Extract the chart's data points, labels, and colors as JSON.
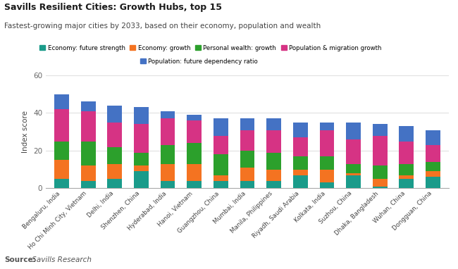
{
  "title": "Savills Resilient Cities: Growth Hubs, top 15",
  "subtitle": "Fastest-growing major cities by 2033, based on their economy, population and wealth",
  "source_bold": "Source:",
  "source_italic": " Savills Research",
  "ylabel": "Index score",
  "ylim": [
    0,
    60
  ],
  "yticks": [
    0,
    20,
    40,
    60
  ],
  "categories": [
    "Bengaluru, India",
    "Ho Chi Minh City, Vietnam",
    "Delhi, India",
    "Shenzhen, China",
    "Hyderabad, India",
    "Hanoi, Vietnam",
    "Guangzhou, China",
    "Mumbai, India",
    "Manila, Philippines",
    "Riyadh, Saudi Arabia",
    "Kolkata, India",
    "Suzhou, China",
    "Dhaka, Bangladesh",
    "Wuhan, China",
    "Dongguan, China"
  ],
  "series": {
    "Economy: future strength": {
      "color": "#1a9b8a",
      "values": [
        5,
        4,
        5,
        9,
        4,
        4,
        4,
        4,
        4,
        7,
        3,
        7,
        1,
        5,
        6
      ]
    },
    "Economy: growth": {
      "color": "#f47321",
      "values": [
        10,
        8,
        8,
        3,
        9,
        9,
        3,
        7,
        6,
        3,
        7,
        1,
        4,
        2,
        3
      ]
    },
    "Personal wealth: growth": {
      "color": "#2ca02c",
      "values": [
        10,
        13,
        9,
        7,
        10,
        11,
        11,
        9,
        9,
        7,
        7,
        5,
        7,
        6,
        5
      ]
    },
    "Population & migration growth": {
      "color": "#d63384",
      "values": [
        17,
        16,
        13,
        15,
        14,
        12,
        10,
        11,
        12,
        10,
        14,
        13,
        16,
        12,
        9
      ]
    },
    "Population: future dependency ratio": {
      "color": "#4472c4",
      "values": [
        8,
        5,
        9,
        9,
        4,
        3,
        9,
        6,
        6,
        8,
        4,
        9,
        6,
        8,
        8
      ]
    }
  },
  "legend_order": [
    "Economy: future strength",
    "Economy: growth",
    "Personal wealth: growth",
    "Population & migration growth",
    "Population: future dependency ratio"
  ],
  "title_color": "#1a1a1a",
  "subtitle_color": "#444444",
  "source_color": "#555555",
  "bar_width": 0.55,
  "background_color": "#ffffff",
  "grid_color": "#e0e0e0"
}
